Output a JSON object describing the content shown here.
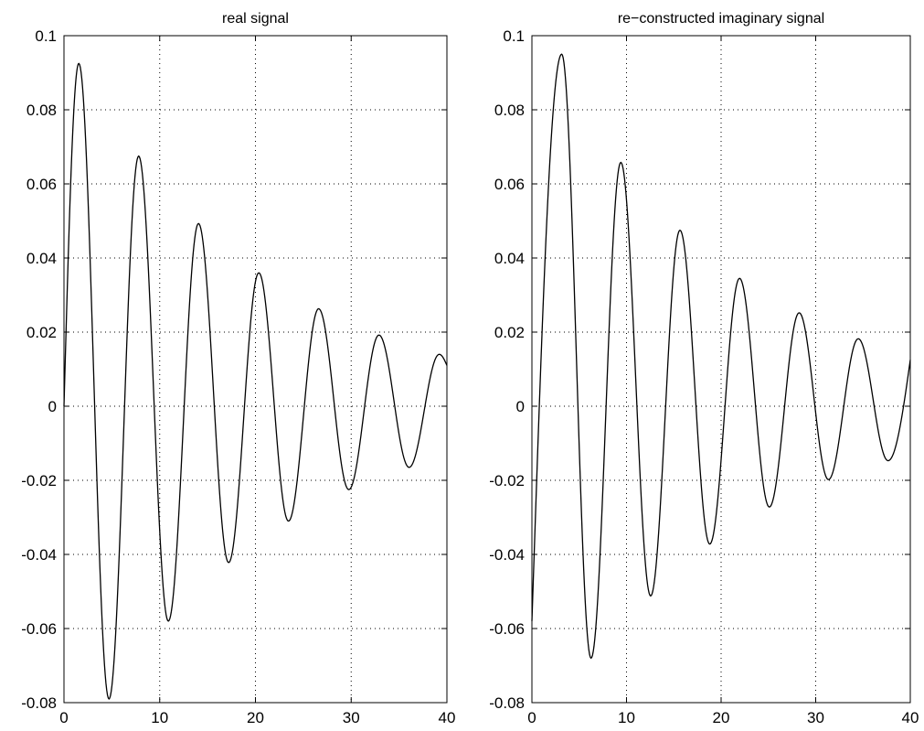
{
  "chart_data": [
    {
      "type": "line",
      "title": "real signal",
      "xlabel": "",
      "ylabel": "",
      "xlim": [
        0,
        40
      ],
      "ylim": [
        -0.08,
        0.1
      ],
      "xticks": [
        0,
        10,
        20,
        30,
        40
      ],
      "yticks": [
        -0.08,
        -0.06,
        -0.04,
        -0.02,
        0,
        0.02,
        0.04,
        0.06,
        0.08,
        0.1
      ],
      "xtick_labels": [
        "0",
        "10",
        "20",
        "30",
        "40"
      ],
      "ytick_labels": [
        "-0.08",
        "-0.06",
        "-0.04",
        "-0.02",
        "0",
        "0.02",
        "0.04",
        "0.06",
        "0.08",
        "0.1"
      ],
      "grid": true,
      "line_color": "#000000",
      "series": [
        {
          "x": [
            0,
            1.55,
            4.7,
            7.8,
            10.9,
            14.05,
            17.2,
            20.35,
            23.45,
            26.6,
            29.75,
            32.9,
            36.05,
            39.2,
            40
          ],
          "y": [
            0,
            0.0925,
            -0.079,
            0.0675,
            -0.058,
            0.0493,
            -0.0422,
            0.036,
            -0.031,
            0.0263,
            -0.0225,
            0.0192,
            -0.0165,
            0.014,
            0.011
          ]
        }
      ]
    },
    {
      "type": "line",
      "title": "re−constructed imaginary signal",
      "xlabel": "",
      "ylabel": "",
      "xlim": [
        0,
        40
      ],
      "ylim": [
        -0.08,
        0.1
      ],
      "xticks": [
        0,
        10,
        20,
        30,
        40
      ],
      "yticks": [
        -0.08,
        -0.06,
        -0.04,
        -0.02,
        0,
        0.02,
        0.04,
        0.06,
        0.08,
        0.1
      ],
      "xtick_labels": [
        "0",
        "10",
        "20",
        "30",
        "40"
      ],
      "ytick_labels": [
        "-0.08",
        "-0.06",
        "-0.04",
        "-0.02",
        "0",
        "0.02",
        "0.04",
        "0.06",
        "0.08",
        "0.1"
      ],
      "grid": true,
      "line_color": "#000000",
      "series": [
        {
          "x": [
            0,
            3.15,
            6.25,
            9.4,
            12.55,
            15.65,
            18.8,
            21.95,
            25.1,
            28.25,
            31.35,
            34.5,
            37.65,
            40
          ],
          "y": [
            -0.058,
            0.095,
            -0.068,
            0.0658,
            -0.0512,
            0.0475,
            -0.0372,
            0.0345,
            -0.0272,
            0.0252,
            -0.0198,
            0.0182,
            -0.0147,
            0.0125
          ]
        }
      ]
    }
  ]
}
